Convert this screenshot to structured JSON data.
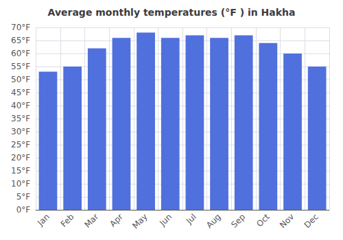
{
  "chart_data": {
    "type": "bar",
    "title": "Average monthly temperatures (°F ) in Hakha",
    "categories": [
      "Jan",
      "Feb",
      "Mar",
      "Apr",
      "May",
      "Jun",
      "Jul",
      "Aug",
      "Sep",
      "Oct",
      "Nov",
      "Dec"
    ],
    "values": [
      53,
      55,
      62,
      66,
      68,
      66,
      67,
      66,
      67,
      64,
      60,
      55
    ],
    "ylim": [
      0,
      70
    ],
    "yticks": [
      {
        "value": 0,
        "label": "0°F"
      },
      {
        "value": 5,
        "label": "5°F"
      },
      {
        "value": 10,
        "label": "10°F"
      },
      {
        "value": 15,
        "label": "15°F"
      },
      {
        "value": 20,
        "label": "20°F"
      },
      {
        "value": 25,
        "label": "25°F"
      },
      {
        "value": 30,
        "label": "30°F"
      },
      {
        "value": 35,
        "label": "35°F"
      },
      {
        "value": 40,
        "label": "40°F"
      },
      {
        "value": 45,
        "label": "45°F"
      },
      {
        "value": 50,
        "label": "50°F"
      },
      {
        "value": 55,
        "label": "55°F"
      },
      {
        "value": 60,
        "label": "60°F"
      },
      {
        "value": 65,
        "label": "65°F"
      },
      {
        "value": 70,
        "label": "70°F"
      }
    ],
    "grid": true
  }
}
